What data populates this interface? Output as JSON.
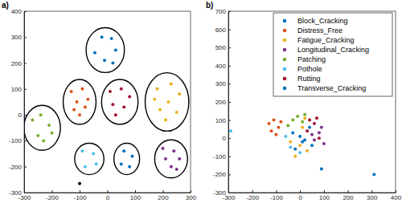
{
  "chart_data": [
    {
      "type": "scatter",
      "title": "a)",
      "xlim": [
        -300,
        300
      ],
      "ylim": [
        -300,
        400
      ],
      "xticks": [
        -300,
        -200,
        -100,
        0,
        100,
        200,
        300
      ],
      "yticks": [
        -300,
        -200,
        -100,
        0,
        100,
        200,
        300,
        400
      ],
      "series": [
        {
          "color": "#0072BD",
          "x": [
            -20,
            15,
            -45,
            30,
            -10,
            20
          ],
          "values": [
            300,
            295,
            240,
            250,
            210,
            200
          ]
        },
        {
          "color": "#D95319",
          "x": [
            -130,
            -90,
            -110,
            -70,
            -120,
            -80,
            -100
          ],
          "values": [
            90,
            100,
            50,
            60,
            20,
            30,
            0
          ]
        },
        {
          "color": "#EDB120",
          "x": [
            180,
            230,
            170,
            220,
            260,
            190,
            250,
            210
          ],
          "values": [
            100,
            120,
            60,
            50,
            80,
            20,
            10,
            -20
          ]
        },
        {
          "color": "#7E2F8E",
          "x": [
            200,
            240,
            210,
            260,
            230,
            250
          ],
          "values": [
            -130,
            -140,
            -170,
            -170,
            -200,
            -210
          ]
        },
        {
          "color": "#77AC30",
          "x": [
            -270,
            -240,
            -210,
            -250,
            -230,
            -200
          ],
          "values": [
            -20,
            0,
            -40,
            -80,
            -100,
            -70
          ]
        },
        {
          "color": "#4DBEEE",
          "x": [
            -90,
            -50,
            -80,
            -40
          ],
          "values": [
            -140,
            -150,
            -200,
            -190
          ]
        },
        {
          "color": "#A2142F",
          "x": [
            10,
            50,
            80,
            20,
            60,
            30
          ],
          "values": [
            90,
            100,
            70,
            40,
            30,
            0
          ]
        },
        {
          "color": "#0072BD",
          "x": [
            60,
            90,
            50,
            80
          ],
          "values": [
            -140,
            -160,
            -190,
            -200
          ]
        },
        {
          "color": "#000000",
          "x": [
            -100
          ],
          "values": [
            -265
          ]
        }
      ]
    },
    {
      "type": "scatter",
      "title": "b)",
      "xlim": [
        -300,
        400
      ],
      "ylim": [
        -300,
        700
      ],
      "xticks": [
        -300,
        -200,
        -100,
        0,
        100,
        200,
        300,
        400
      ],
      "yticks": [
        -300,
        -200,
        -100,
        0,
        100,
        200,
        300,
        400,
        500,
        600,
        700
      ],
      "legend": "northeast",
      "series": [
        {
          "name": "Block_Cracking",
          "color": "#0072BD",
          "x": [
            -30,
            10,
            -20,
            40,
            0
          ],
          "values": [
            30,
            -20,
            -60,
            60,
            10
          ]
        },
        {
          "name": "Distress_Free",
          "color": "#D95319",
          "x": [
            -130,
            -110,
            -90,
            -120,
            -80,
            -100
          ],
          "values": [
            80,
            100,
            60,
            40,
            90,
            20
          ]
        },
        {
          "name": "Fatigue_Cracking",
          "color": "#EDB120",
          "x": [
            -20,
            0,
            30,
            -40,
            10,
            20
          ],
          "values": [
            -100,
            -40,
            -70,
            -20,
            60,
            110
          ]
        },
        {
          "name": "Longitudinal_Cracking",
          "color": "#7E2F8E",
          "x": [
            60,
            80,
            100,
            50,
            90
          ],
          "values": [
            -10,
            30,
            -30,
            20,
            60
          ]
        },
        {
          "name": "Patching",
          "color": "#77AC30",
          "x": [
            -10,
            20,
            -30,
            10,
            -50
          ],
          "values": [
            120,
            130,
            100,
            90,
            70
          ]
        },
        {
          "name": "Pothole",
          "color": "#4DBEEE",
          "x": [
            -290,
            -40,
            0,
            -60
          ],
          "values": [
            40,
            -50,
            -80,
            10
          ]
        },
        {
          "name": "Rutting",
          "color": "#A2142F",
          "x": [
            40,
            60,
            80,
            30,
            70
          ],
          "values": [
            100,
            80,
            0,
            40,
            110
          ]
        },
        {
          "name": "Transverse_Cracking",
          "color": "#0072BD",
          "x": [
            90,
            310,
            20,
            50
          ],
          "values": [
            -170,
            -200,
            -10,
            -40
          ]
        }
      ]
    }
  ]
}
